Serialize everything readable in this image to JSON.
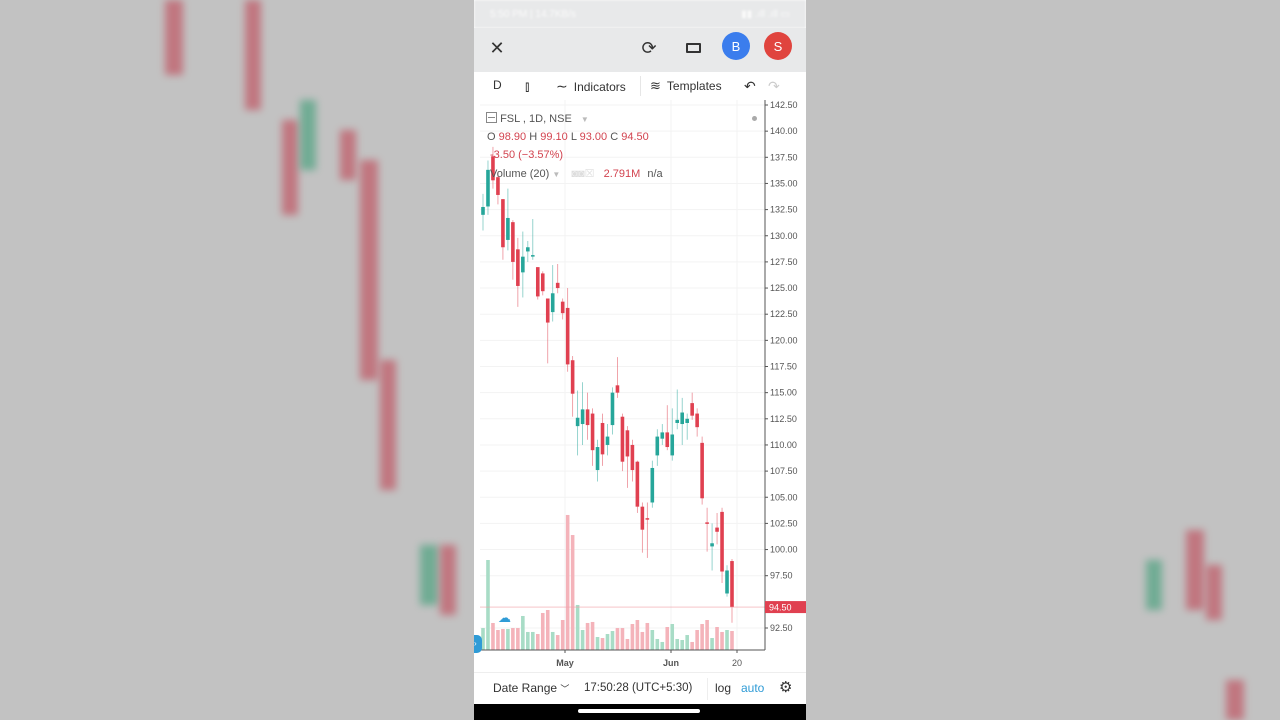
{
  "status_bar": {
    "left": "5:50 PM | 14.7KB/s",
    "right": "▮▮ .ıll .ıll ▭"
  },
  "header": {
    "close_icon": "close-icon",
    "refresh_icon": "refresh-icon",
    "window_icon": "rectangle-icon",
    "avatars": [
      {
        "letter": "B",
        "color": "#3b7ded"
      },
      {
        "letter": "S",
        "color": "#e0443e"
      }
    ]
  },
  "toolbar": {
    "interval": "D",
    "chart_type_icon": "candles-icon",
    "indicators_label": "Indicators",
    "templates_label": "Templates",
    "undo_icon": "undo-icon",
    "redo_icon": "redo-icon"
  },
  "legend": {
    "symbol": "FSL",
    "meta": ", 1D, NSE",
    "open_label": "O",
    "open": "98.90",
    "high_label": "H",
    "high": "99.10",
    "low_label": "L",
    "low": "93.00",
    "close_label": "C",
    "close": "94.50",
    "change": "-3.50 (−3.57%)",
    "volume_label": "Volume (20)",
    "volume_value": "2.791M",
    "volume_ma": "n/a"
  },
  "colors": {
    "up": "#26a69a",
    "down": "#e04050",
    "up_vol": "#a8dcc6",
    "down_vol": "#f4b3ba",
    "accent": "#2f9bd6"
  },
  "chart_data": {
    "type": "candlestick",
    "symbol": "FSL",
    "interval": "1D",
    "exchange": "NSE",
    "ylim": [
      92.5,
      142.5
    ],
    "y_ticks": [
      "142.50",
      "140.00",
      "137.50",
      "135.00",
      "132.50",
      "130.00",
      "127.50",
      "125.00",
      "122.50",
      "120.00",
      "117.50",
      "115.00",
      "112.50",
      "110.00",
      "107.50",
      "105.00",
      "102.50",
      "100.00",
      "97.50",
      "92.50"
    ],
    "x_ticks": [
      "May",
      "Jun",
      "20"
    ],
    "last_price": "94.50",
    "ohlc": [
      [
        132.0,
        134.0,
        130.5,
        132.75
      ],
      [
        132.8,
        137.2,
        132.0,
        136.3
      ],
      [
        137.6,
        138.5,
        134.5,
        135.3
      ],
      [
        135.6,
        136.0,
        133.0,
        133.9
      ],
      [
        133.5,
        133.5,
        127.7,
        128.9
      ],
      [
        129.6,
        134.5,
        128.6,
        131.7
      ],
      [
        131.3,
        131.5,
        125.8,
        127.5
      ],
      [
        128.7,
        129.8,
        123.2,
        125.2
      ],
      [
        126.5,
        130.4,
        124.1,
        128.0
      ],
      [
        128.5,
        129.5,
        127.5,
        128.9
      ],
      [
        128.1,
        131.6,
        127.7,
        128.15
      ],
      [
        127.0,
        127.0,
        123.9,
        124.2
      ],
      [
        126.4,
        126.6,
        124.3,
        124.7
      ],
      [
        124.0,
        124.0,
        117.8,
        121.7
      ],
      [
        122.7,
        127.2,
        121.8,
        124.5
      ],
      [
        125.5,
        127.3,
        124.5,
        125.0
      ],
      [
        123.7,
        124.0,
        122.0,
        122.6
      ],
      [
        123.1,
        125.0,
        117.0,
        117.7
      ],
      [
        118.1,
        118.5,
        112.7,
        114.9
      ],
      [
        111.8,
        115.2,
        109.0,
        112.6
      ],
      [
        112.0,
        116.0,
        110.0,
        113.4
      ],
      [
        113.4,
        115.0,
        110.5,
        111.9
      ],
      [
        113.0,
        113.5,
        108.0,
        109.5
      ],
      [
        107.6,
        110.5,
        106.5,
        109.8
      ],
      [
        112.1,
        113.0,
        108.0,
        109.1
      ],
      [
        110.0,
        112.0,
        109.0,
        110.8
      ],
      [
        111.9,
        115.5,
        111.0,
        115.0
      ],
      [
        115.7,
        118.4,
        114.5,
        115.0
      ],
      [
        112.7,
        113.0,
        107.5,
        108.4
      ],
      [
        111.4,
        111.8,
        105.9,
        108.9
      ],
      [
        110.0,
        110.5,
        106.5,
        107.6
      ],
      [
        108.4,
        108.5,
        103.5,
        104.1
      ],
      [
        104.1,
        104.5,
        99.7,
        101.9
      ],
      [
        103.0,
        104.5,
        99.2,
        102.95
      ],
      [
        104.5,
        108.5,
        104.0,
        107.8
      ],
      [
        109.0,
        111.5,
        108.0,
        110.8
      ],
      [
        110.6,
        112.0,
        110.0,
        111.2
      ],
      [
        111.2,
        113.8,
        109.5,
        109.8
      ],
      [
        109.0,
        113.5,
        108.5,
        111.0
      ],
      [
        112.1,
        115.3,
        111.5,
        112.4
      ],
      [
        112.0,
        114.5,
        110.0,
        113.1
      ],
      [
        112.1,
        113.0,
        110.5,
        112.5
      ],
      [
        114.0,
        115.0,
        112.4,
        112.8
      ],
      [
        113.0,
        113.5,
        110.8,
        111.7
      ],
      [
        110.2,
        110.8,
        104.3,
        104.9
      ],
      [
        102.6,
        104.0,
        99.8,
        102.55
      ],
      [
        100.3,
        102.5,
        98.0,
        100.6
      ],
      [
        102.1,
        103.5,
        100.5,
        101.7
      ],
      [
        103.6,
        104.0,
        96.8,
        97.9
      ],
      [
        95.8,
        98.5,
        95.5,
        98.0
      ],
      [
        98.9,
        99.1,
        93.0,
        94.5
      ]
    ],
    "volume_millions": [
      3.23,
      13.23,
      3.97,
      2.94,
      3.09,
      3.09,
      3.23,
      3.23,
      5.0,
      2.65,
      2.65,
      2.35,
      5.44,
      5.88,
      2.65,
      2.2,
      4.41,
      19.85,
      16.9,
      6.62,
      2.94,
      3.97,
      4.12,
      1.91,
      1.76,
      2.35,
      2.79,
      3.23,
      3.23,
      1.62,
      3.82,
      4.41,
      2.65,
      3.97,
      2.94,
      1.62,
      1.18,
      3.38,
      3.82,
      1.62,
      1.47,
      2.2,
      1.18,
      2.94,
      3.82,
      4.41,
      1.76,
      3.38,
      2.65,
      2.94,
      2.791
    ]
  },
  "bottom": {
    "date_range_label": "Date Range",
    "time": "17:50:28 (UTC+5:30)",
    "log_label": "log",
    "auto_label": "auto",
    "settings_icon": "gear-icon"
  }
}
